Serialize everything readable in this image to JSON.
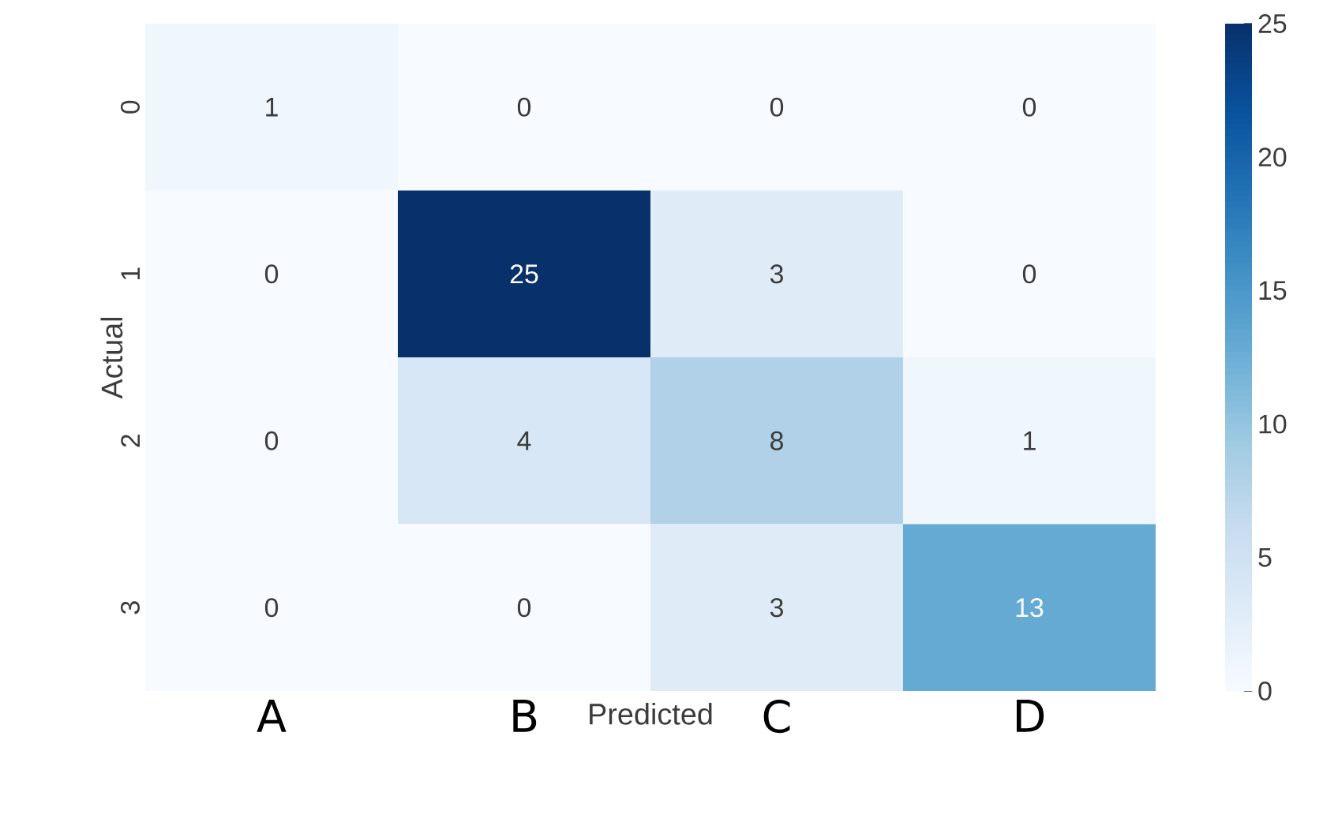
{
  "chart_data": {
    "type": "heatmap",
    "xlabel": "Predicted",
    "ylabel": "Actual",
    "categories": [
      "A",
      "B",
      "C",
      "D"
    ],
    "y_categories": [
      "0",
      "1",
      "2",
      "3"
    ],
    "cells": [
      [
        1,
        0,
        0,
        0
      ],
      [
        0,
        25,
        3,
        0
      ],
      [
        0,
        4,
        8,
        1
      ],
      [
        0,
        0,
        3,
        13
      ]
    ],
    "data_labels": true,
    "clim": [
      0,
      25
    ],
    "cticks": [
      0,
      5,
      10,
      15,
      20,
      25
    ]
  }
}
